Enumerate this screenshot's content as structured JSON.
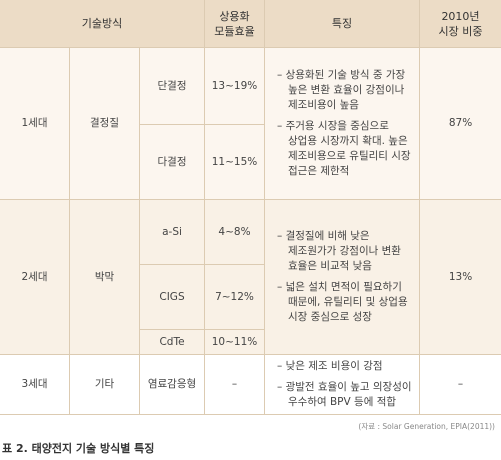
{
  "header": {
    "tech": "기술방식",
    "efficiency": [
      "상용화",
      "모듈효율"
    ],
    "features": "특징",
    "share": [
      "2010년",
      "시장 비중"
    ]
  },
  "rows": [
    {
      "generation": "1세대",
      "category": "결정질",
      "types": [
        {
          "name": "단결정",
          "efficiency": "13~19%"
        },
        {
          "name": "다결정",
          "efficiency": "11~15%"
        }
      ],
      "features": [
        [
          "– 상용화된 기술 방식 중 가장",
          "높은 변환 효율이 강점이나",
          "제조비용이 높음"
        ],
        [
          "– 주거용 시장을 중심으로",
          "상업용 시장까지 확대. 높은",
          "제조비용으로 유틸리티 시장",
          "접근은 제한적"
        ]
      ],
      "share": "87%"
    },
    {
      "generation": "2세대",
      "category": "박막",
      "types": [
        {
          "name": "a-Si",
          "efficiency": "4~8%"
        },
        {
          "name": "CIGS",
          "efficiency": "7~12%"
        },
        {
          "name": "CdTe",
          "efficiency": "10~11%"
        }
      ],
      "features": [
        [
          "– 결정질에 비해 낮은",
          "제조원가가 강점이나 변환",
          "효율은 비교적 낮음"
        ],
        [
          "– 넓은 설치 면적이 필요하기",
          "때문에, 유틸리티 및 상업용",
          "시장 중심으로 성장"
        ]
      ],
      "share": "13%"
    },
    {
      "generation": "3세대",
      "category": "기타",
      "types": [
        {
          "name": "염료감응형",
          "efficiency": "–"
        }
      ],
      "features": [
        [
          "– 낮은 제조 비용이 강점"
        ],
        [
          "– 광발전 효율이 높고 의장성이",
          "우수하여 BPV 등에 적합"
        ]
      ],
      "share": "–"
    }
  ],
  "source": "(자료 : Solar Generation, EPIA(2011))",
  "caption": "표 2. 태양전지 기술 방식별 특징"
}
